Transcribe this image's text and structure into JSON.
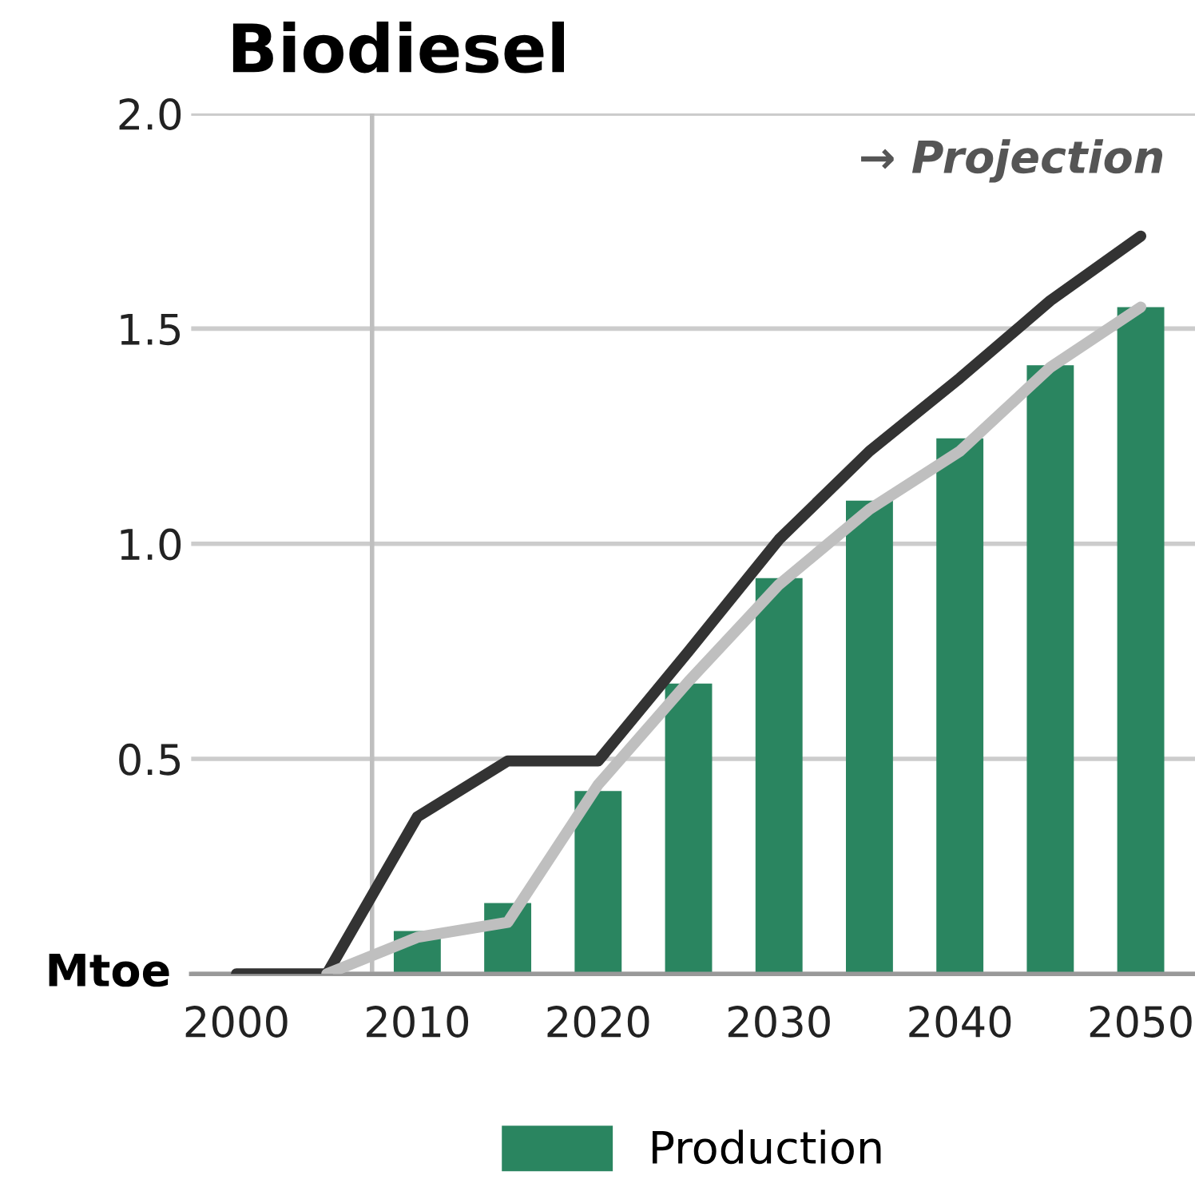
{
  "chart_data": {
    "type": "bar",
    "title": "Biodiesel",
    "ylabel": "Mtoe",
    "x": [
      2000,
      2005,
      2010,
      2015,
      2020,
      2025,
      2030,
      2035,
      2040,
      2045,
      2050
    ],
    "series": [
      {
        "name": "Production",
        "color": "#2a8560",
        "values": [
          null,
          null,
          0.1,
          0.165,
          0.425,
          0.675,
          0.92,
          1.1,
          1.245,
          1.415,
          1.55
        ]
      },
      {
        "type": "line",
        "color": "#333333",
        "values": [
          0,
          0,
          0.365,
          0.495,
          0.495,
          0.75,
          1.01,
          1.215,
          1.385,
          1.565,
          1.715
        ]
      },
      {
        "type": "line",
        "color": "#bfbfbf",
        "values": [
          null,
          0,
          0.085,
          0.12,
          0.44,
          0.68,
          0.905,
          1.08,
          1.215,
          1.41,
          1.55
        ]
      }
    ],
    "xlim": [
      1997.5,
      2053
    ],
    "xticks": [
      2000,
      2010,
      2020,
      2030,
      2040,
      2050
    ],
    "ylim": [
      0,
      2.0
    ],
    "yticks": [
      {
        "value": 0,
        "label": null
      },
      0.5,
      {
        "value": 1,
        "label": "1.0"
      },
      1.5,
      {
        "value": 2,
        "label": "2.0"
      }
    ],
    "annotations": [
      "→ Projection"
    ],
    "grid": "y",
    "legend": "bottom",
    "marker": "none",
    "line_style": "solid",
    "ref_lines": [
      {
        "axis": "x",
        "value": 2007.5,
        "color": "#bfbfbf"
      }
    ]
  }
}
